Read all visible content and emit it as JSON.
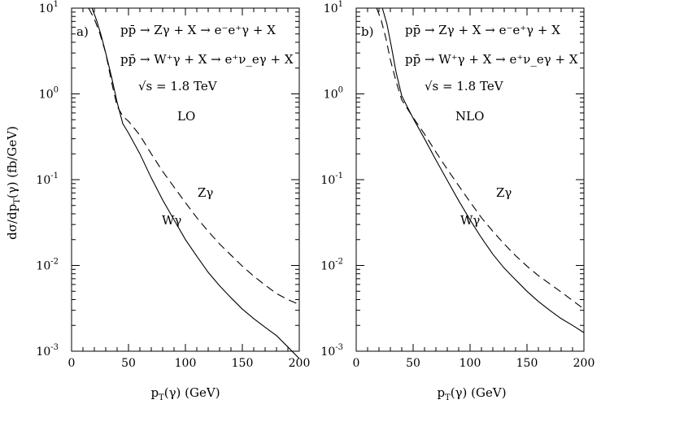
{
  "figure": {
    "ylabel": "dσ/dp_T(γ) (fb/GeV)",
    "ylabel_parts": {
      "pre": "dσ/dp",
      "sub": "T",
      "post": "(γ)  (fb/GeV)"
    },
    "xlabel_parts": {
      "pre": "p",
      "sub": "T",
      "post": "(γ)  (GeV)"
    }
  },
  "chart_data": [
    {
      "type": "line",
      "panel_label": "a)",
      "xlabel": "p_T(γ) (GeV)",
      "ylabel": "dσ/dp_T(γ) (fb/GeV)",
      "xlim": [
        0,
        200
      ],
      "ylim": [
        0.001,
        10
      ],
      "yscale": "log",
      "x_ticks": [
        "0",
        "50",
        "100",
        "150",
        "200"
      ],
      "y_ticks": [
        {
          "base": "10",
          "exp": "1"
        },
        {
          "base": "10",
          "exp": "0"
        },
        {
          "base": "10",
          "exp": "-1"
        },
        {
          "base": "10",
          "exp": "-2"
        },
        {
          "base": "10",
          "exp": "-3"
        }
      ],
      "annotations": {
        "process_1": "pp̄ → Zγ + X → e⁻e⁺γ + X",
        "process_2": "pp̄ → W⁺γ + X → e⁺ν_eγ + X",
        "energy": "√s = 1.8 TeV",
        "order": "LO"
      },
      "series": [
        {
          "name": "Wγ",
          "style": "solid",
          "x": [
            18,
            22,
            26,
            30,
            35,
            40,
            45,
            50,
            60,
            70,
            80,
            90,
            100,
            110,
            120,
            130,
            140,
            150,
            160,
            170,
            180,
            190,
            200
          ],
          "y": [
            10,
            7.2,
            4.8,
            3.0,
            1.6,
            0.8,
            0.45,
            0.35,
            0.2,
            0.105,
            0.058,
            0.034,
            0.02,
            0.0128,
            0.0083,
            0.0058,
            0.0042,
            0.0031,
            0.0024,
            0.0019,
            0.00152,
            0.00112,
            0.00082
          ]
        },
        {
          "name": "Zγ",
          "style": "dashed",
          "x": [
            15,
            20,
            25,
            30,
            35,
            40,
            45,
            50,
            60,
            70,
            80,
            90,
            100,
            110,
            120,
            130,
            140,
            150,
            160,
            170,
            180,
            190,
            200
          ],
          "y": [
            10,
            7.5,
            5.0,
            3.0,
            1.4,
            0.72,
            0.55,
            0.48,
            0.33,
            0.2,
            0.125,
            0.082,
            0.054,
            0.036,
            0.025,
            0.0178,
            0.0132,
            0.0098,
            0.0075,
            0.0059,
            0.0047,
            0.004,
            0.0035
          ]
        }
      ]
    },
    {
      "type": "line",
      "panel_label": "b)",
      "xlabel": "p_T(γ) (GeV)",
      "ylabel": "",
      "xlim": [
        0,
        200
      ],
      "ylim": [
        0.001,
        10
      ],
      "yscale": "log",
      "x_ticks": [
        "0",
        "50",
        "100",
        "150",
        "200"
      ],
      "y_ticks": [
        {
          "base": "10",
          "exp": "1"
        },
        {
          "base": "10",
          "exp": "0"
        },
        {
          "base": "10",
          "exp": "-1"
        },
        {
          "base": "10",
          "exp": "-2"
        },
        {
          "base": "10",
          "exp": "-3"
        }
      ],
      "annotations": {
        "process_1": "pp̄ → Zγ + X → e⁻e⁺γ + X",
        "process_2": "pp̄ → W⁺γ + X → e⁺ν_eγ + X",
        "energy": "√s = 1.8 TeV",
        "order": "NLO"
      },
      "series": [
        {
          "name": "Wγ",
          "style": "solid",
          "x": [
            23,
            27,
            31,
            35,
            40,
            45,
            50,
            60,
            70,
            80,
            90,
            100,
            110,
            120,
            130,
            140,
            150,
            160,
            170,
            180,
            190,
            200
          ],
          "y": [
            10,
            6.5,
            3.5,
            1.8,
            0.95,
            0.7,
            0.52,
            0.3,
            0.17,
            0.098,
            0.057,
            0.034,
            0.021,
            0.0135,
            0.0093,
            0.0068,
            0.005,
            0.0038,
            0.003,
            0.0024,
            0.002,
            0.00165
          ]
        },
        {
          "name": "Zγ",
          "style": "dashed",
          "x": [
            18,
            22,
            26,
            30,
            35,
            40,
            45,
            50,
            60,
            70,
            80,
            90,
            100,
            110,
            120,
            130,
            140,
            150,
            160,
            170,
            180,
            190,
            200
          ],
          "y": [
            10,
            7.2,
            4.5,
            2.5,
            1.4,
            0.85,
            0.67,
            0.53,
            0.34,
            0.21,
            0.132,
            0.085,
            0.055,
            0.036,
            0.025,
            0.0178,
            0.013,
            0.0098,
            0.0076,
            0.0061,
            0.0049,
            0.0039,
            0.0031
          ]
        }
      ]
    }
  ]
}
